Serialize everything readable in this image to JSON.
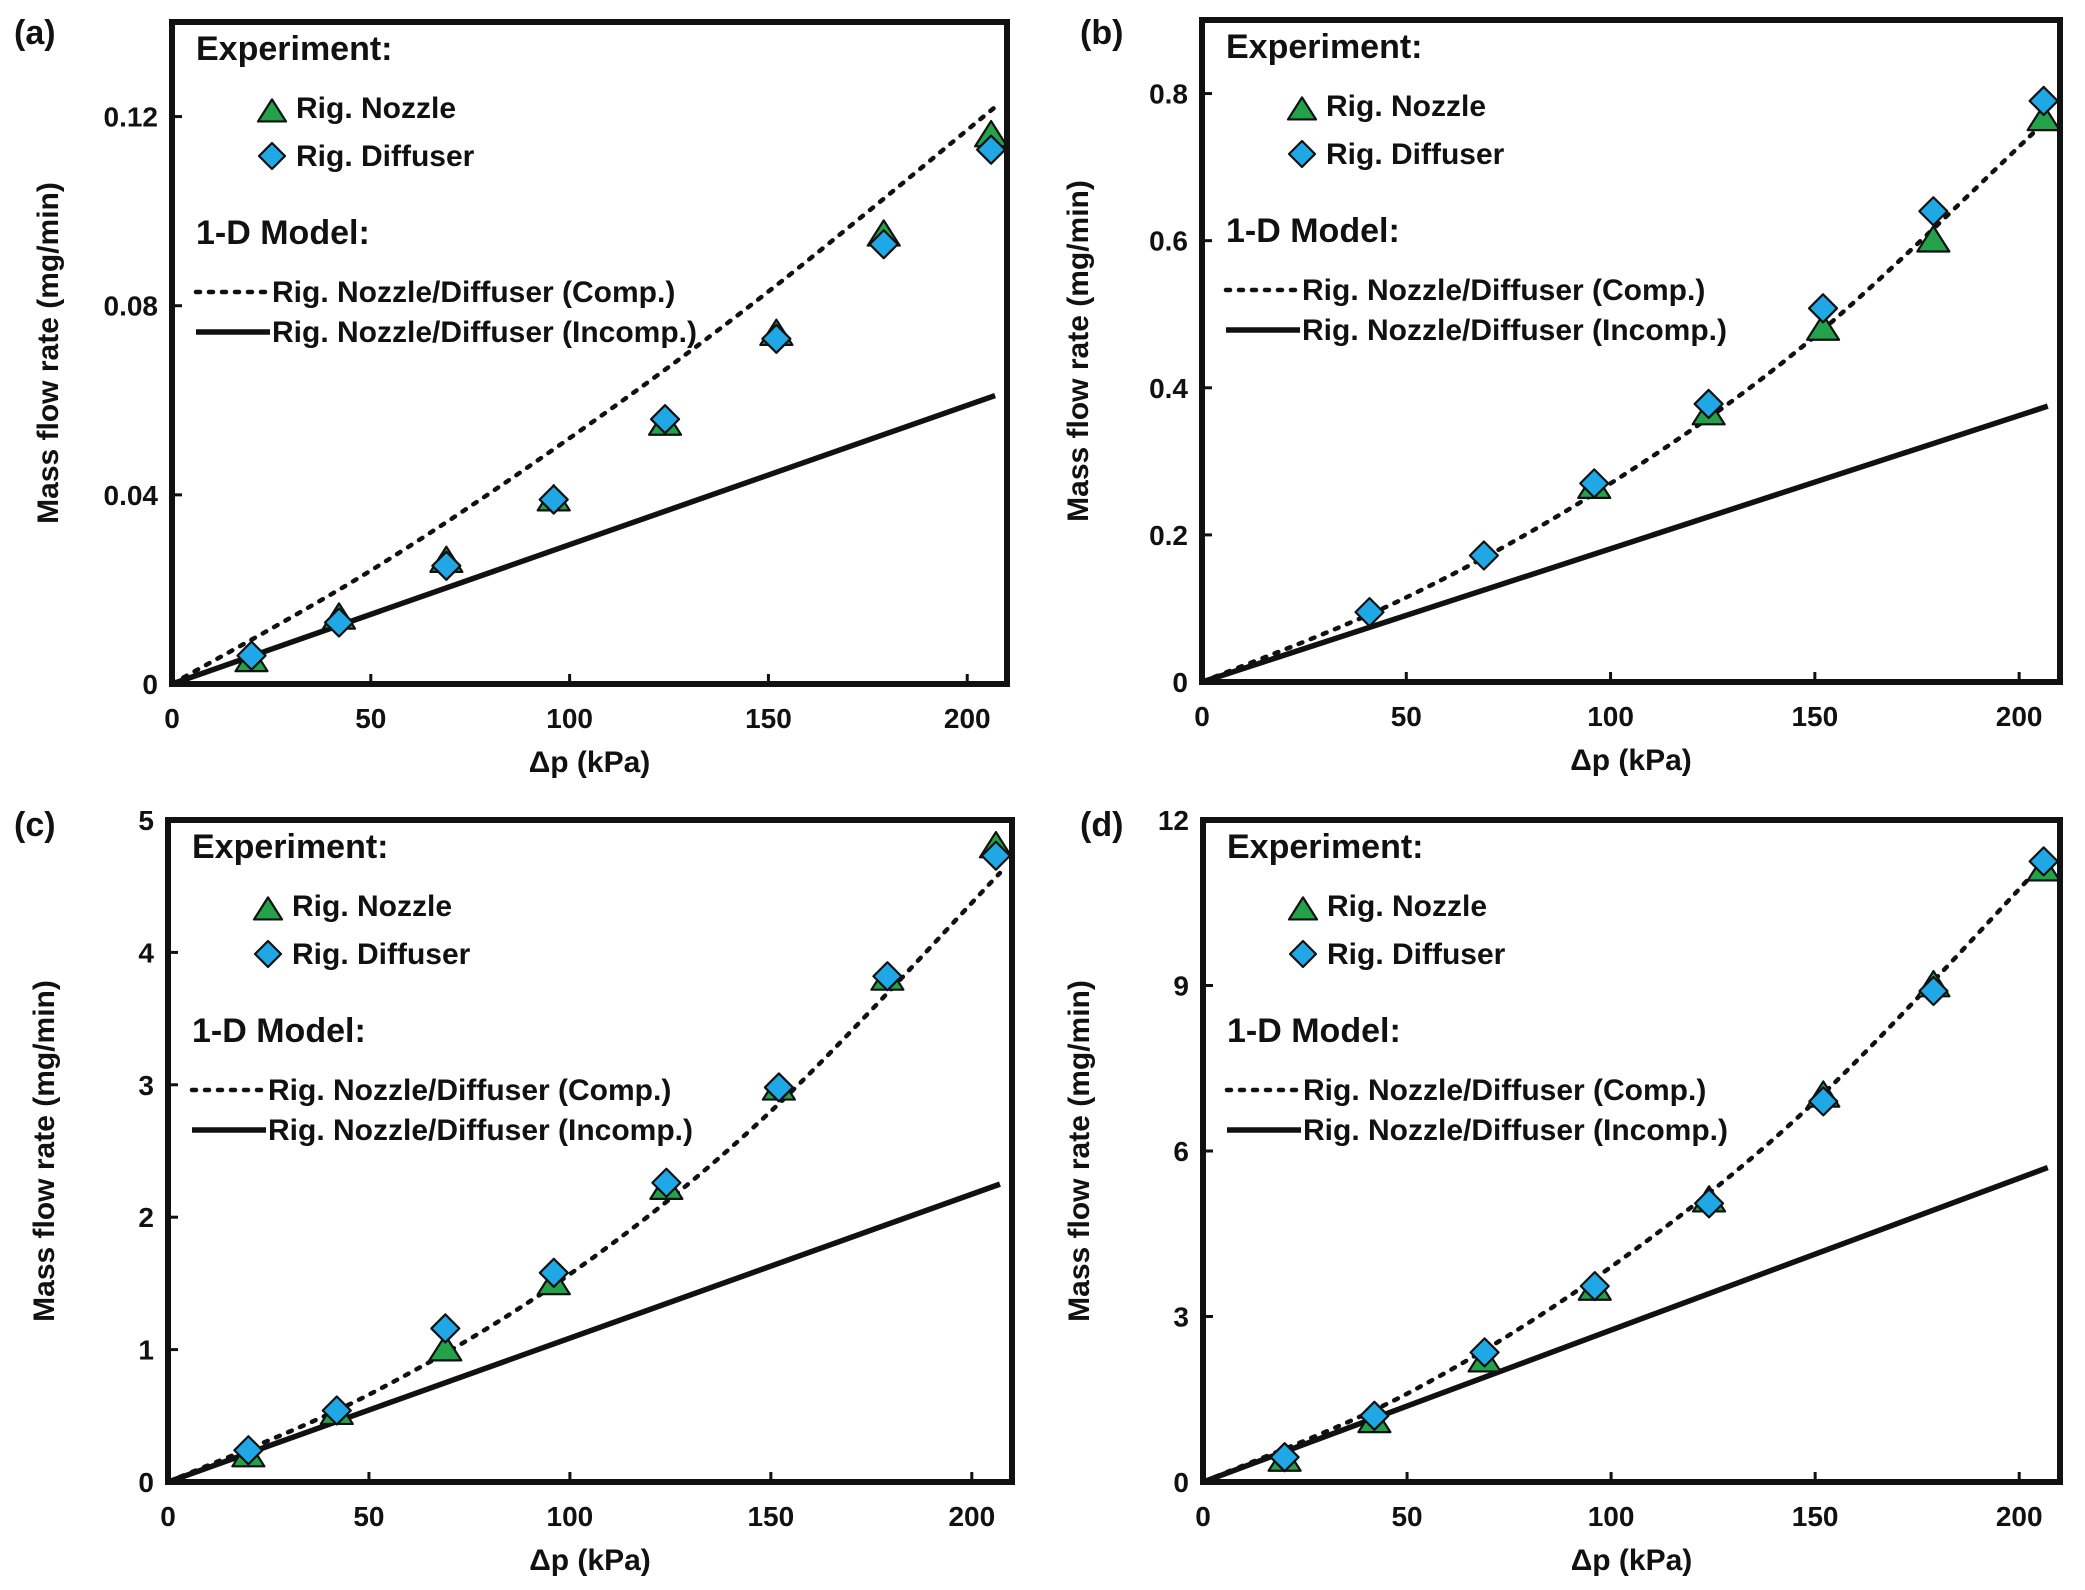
{
  "chart_data": [
    {
      "panel": "(a)",
      "type": "scatter",
      "xlabel": "Δp (kPa)",
      "ylabel": "Mass flow rate (mg/min)",
      "xlim": [
        0,
        210
      ],
      "ylim": [
        0,
        0.14
      ],
      "xticks": [
        0,
        50,
        100,
        150,
        200
      ],
      "xtick_labels": [
        "0",
        "50",
        "100",
        "150",
        "200"
      ],
      "yticks": [
        0,
        0.04,
        0.08,
        0.12
      ],
      "ytick_labels": [
        "0",
        "0.04",
        "0.08",
        "0.12"
      ],
      "legend": {
        "experiment_title": "Experiment:",
        "nozzle_label": "Rig. Nozzle",
        "diffuser_label": "Rig. Diffuser",
        "model_title": "1-D Model:",
        "comp_label": "Rig. Nozzle/Diffuser  (Comp.)",
        "incomp_label": "Rig. Nozzle/Diffuser  (Incomp.)"
      },
      "series": [
        {
          "name": "Rig. Nozzle",
          "marker": "triangle",
          "x": [
            20,
            42,
            69,
            96,
            124,
            152,
            179,
            206
          ],
          "y": [
            0.005,
            0.014,
            0.026,
            0.039,
            0.055,
            0.074,
            0.095,
            0.116
          ]
        },
        {
          "name": "Rig. Diffuser",
          "marker": "diamond",
          "x": [
            20,
            42,
            69,
            96,
            124,
            152,
            179,
            206
          ],
          "y": [
            0.006,
            0.013,
            0.025,
            0.039,
            0.056,
            0.073,
            0.093,
            0.113
          ]
        },
        {
          "name": "Rig. Nozzle/Diffuser (Comp.)",
          "style": "dotted",
          "x": [
            0,
            50,
            100,
            150,
            207
          ],
          "y": [
            0,
            0.024,
            0.052,
            0.083,
            0.122
          ]
        },
        {
          "name": "Rig. Nozzle/Diffuser (Incomp.)",
          "style": "solid",
          "x": [
            0,
            207
          ],
          "y": [
            0,
            0.061
          ]
        }
      ]
    },
    {
      "panel": "(b)",
      "type": "scatter",
      "xlabel": "Δp (kPa)",
      "ylabel": "Mass flow rate (mg/min)",
      "xlim": [
        0,
        210
      ],
      "ylim": [
        0,
        0.9
      ],
      "xticks": [
        0,
        50,
        100,
        150,
        200
      ],
      "xtick_labels": [
        "0",
        "50",
        "100",
        "150",
        "200"
      ],
      "yticks": [
        0,
        0.2,
        0.4,
        0.6,
        0.8
      ],
      "ytick_labels": [
        "0",
        "0.2",
        "0.4",
        "0.6",
        "0.8"
      ],
      "legend": {
        "experiment_title": "Experiment:",
        "nozzle_label": "Rig. Nozzle",
        "diffuser_label": "Rig. Diffuser",
        "model_title": "1-D Model:",
        "comp_label": "Rig. Nozzle/Diffuser  (Comp.)",
        "incomp_label": "Rig. Nozzle/Diffuser  (Incomp.)"
      },
      "series": [
        {
          "name": "Rig. Nozzle",
          "marker": "triangle",
          "x": [
            96,
            124,
            152,
            179,
            206
          ],
          "y": [
            0.265,
            0.365,
            0.48,
            0.6,
            0.765
          ]
        },
        {
          "name": "Rig. Diffuser",
          "marker": "diamond",
          "x": [
            41,
            69,
            96,
            124,
            152,
            179,
            206
          ],
          "y": [
            0.095,
            0.172,
            0.27,
            0.378,
            0.508,
            0.64,
            0.79
          ]
        },
        {
          "name": "Rig. Nozzle/Diffuser (Comp.)",
          "style": "dotted",
          "x": [
            0,
            50,
            100,
            150,
            207
          ],
          "y": [
            0,
            0.115,
            0.27,
            0.47,
            0.765
          ]
        },
        {
          "name": "Rig. Nozzle/Diffuser (Incomp.)",
          "style": "solid",
          "x": [
            0,
            207
          ],
          "y": [
            0,
            0.375
          ]
        }
      ]
    },
    {
      "panel": "(c)",
      "type": "scatter",
      "xlabel": "Δp (kPa)",
      "ylabel": "Mass flow rate (mg/min)",
      "xlim": [
        0,
        210
      ],
      "ylim": [
        0,
        5
      ],
      "xticks": [
        0,
        50,
        100,
        150,
        200
      ],
      "xtick_labels": [
        "0",
        "50",
        "100",
        "150",
        "200"
      ],
      "yticks": [
        0,
        1,
        2,
        3,
        4,
        5
      ],
      "ytick_labels": [
        "0",
        "1",
        "2",
        "3",
        "4",
        "5"
      ],
      "legend": {
        "experiment_title": "Experiment:",
        "nozzle_label": "Rig. Nozzle",
        "diffuser_label": "Rig. Diffuser",
        "model_title": "1-D Model:",
        "comp_label": "Rig. Nozzle/Diffuser  (Comp.)",
        "incomp_label": "Rig. Nozzle/Diffuser  (Incomp.)"
      },
      "series": [
        {
          "name": "Rig. Nozzle",
          "marker": "triangle",
          "x": [
            20,
            42,
            69,
            96,
            124,
            152,
            179,
            206
          ],
          "y": [
            0.2,
            0.52,
            1.0,
            1.5,
            2.22,
            2.97,
            3.8,
            4.8
          ]
        },
        {
          "name": "Rig. Diffuser",
          "marker": "diamond",
          "x": [
            20,
            42,
            69,
            96,
            124,
            152,
            179,
            206
          ],
          "y": [
            0.24,
            0.54,
            1.16,
            1.58,
            2.26,
            2.98,
            3.82,
            4.73
          ]
        },
        {
          "name": "Rig. Nozzle/Diffuser (Comp.)",
          "style": "dotted",
          "x": [
            0,
            50,
            100,
            150,
            207
          ],
          "y": [
            0,
            0.66,
            1.57,
            2.8,
            4.6
          ]
        },
        {
          "name": "Rig. Nozzle/Diffuser (Incomp.)",
          "style": "solid",
          "x": [
            0,
            207
          ],
          "y": [
            0,
            2.25
          ]
        }
      ]
    },
    {
      "panel": "(d)",
      "type": "scatter",
      "xlabel": "Δp (kPa)",
      "ylabel": "Mass flow rate (mg/min)",
      "xlim": [
        0,
        210
      ],
      "ylim": [
        0,
        12
      ],
      "xticks": [
        0,
        50,
        100,
        150,
        200
      ],
      "xtick_labels": [
        "0",
        "50",
        "100",
        "150",
        "200"
      ],
      "yticks": [
        0,
        3,
        6,
        9,
        12
      ],
      "ytick_labels": [
        "0",
        "3",
        "6",
        "9",
        "12"
      ],
      "legend": {
        "experiment_title": "Experiment:",
        "nozzle_label": "Rig. Nozzle",
        "diffuser_label": "Rig. Diffuser",
        "model_title": "1-D Model:",
        "comp_label": "Rig. Nozzle/Diffuser  (Comp.)",
        "incomp_label": "Rig. Nozzle/Diffuser  (Incomp.)"
      },
      "series": [
        {
          "name": "Rig. Nozzle",
          "marker": "triangle",
          "x": [
            20,
            42,
            69,
            96,
            124,
            152,
            179,
            206
          ],
          "y": [
            0.4,
            1.1,
            2.2,
            3.5,
            5.1,
            7.0,
            9.0,
            11.1
          ]
        },
        {
          "name": "Rig. Diffuser",
          "marker": "diamond",
          "x": [
            20,
            42,
            69,
            96,
            124,
            152,
            179,
            206
          ],
          "y": [
            0.45,
            1.2,
            2.35,
            3.55,
            5.05,
            6.9,
            8.9,
            11.25
          ]
        },
        {
          "name": "Rig. Nozzle/Diffuser (Comp.)",
          "style": "dotted",
          "x": [
            0,
            50,
            100,
            150,
            207
          ],
          "y": [
            0,
            1.6,
            3.9,
            6.9,
            11.3
          ]
        },
        {
          "name": "Rig. Nozzle/Diffuser (Incomp.)",
          "style": "solid",
          "x": [
            0,
            207
          ],
          "y": [
            0,
            5.7
          ]
        }
      ]
    }
  ],
  "colors": {
    "triangle_fill": "#23a24a",
    "diamond_fill": "#1fa7e6",
    "line": "#111111",
    "frame": "#111111"
  }
}
